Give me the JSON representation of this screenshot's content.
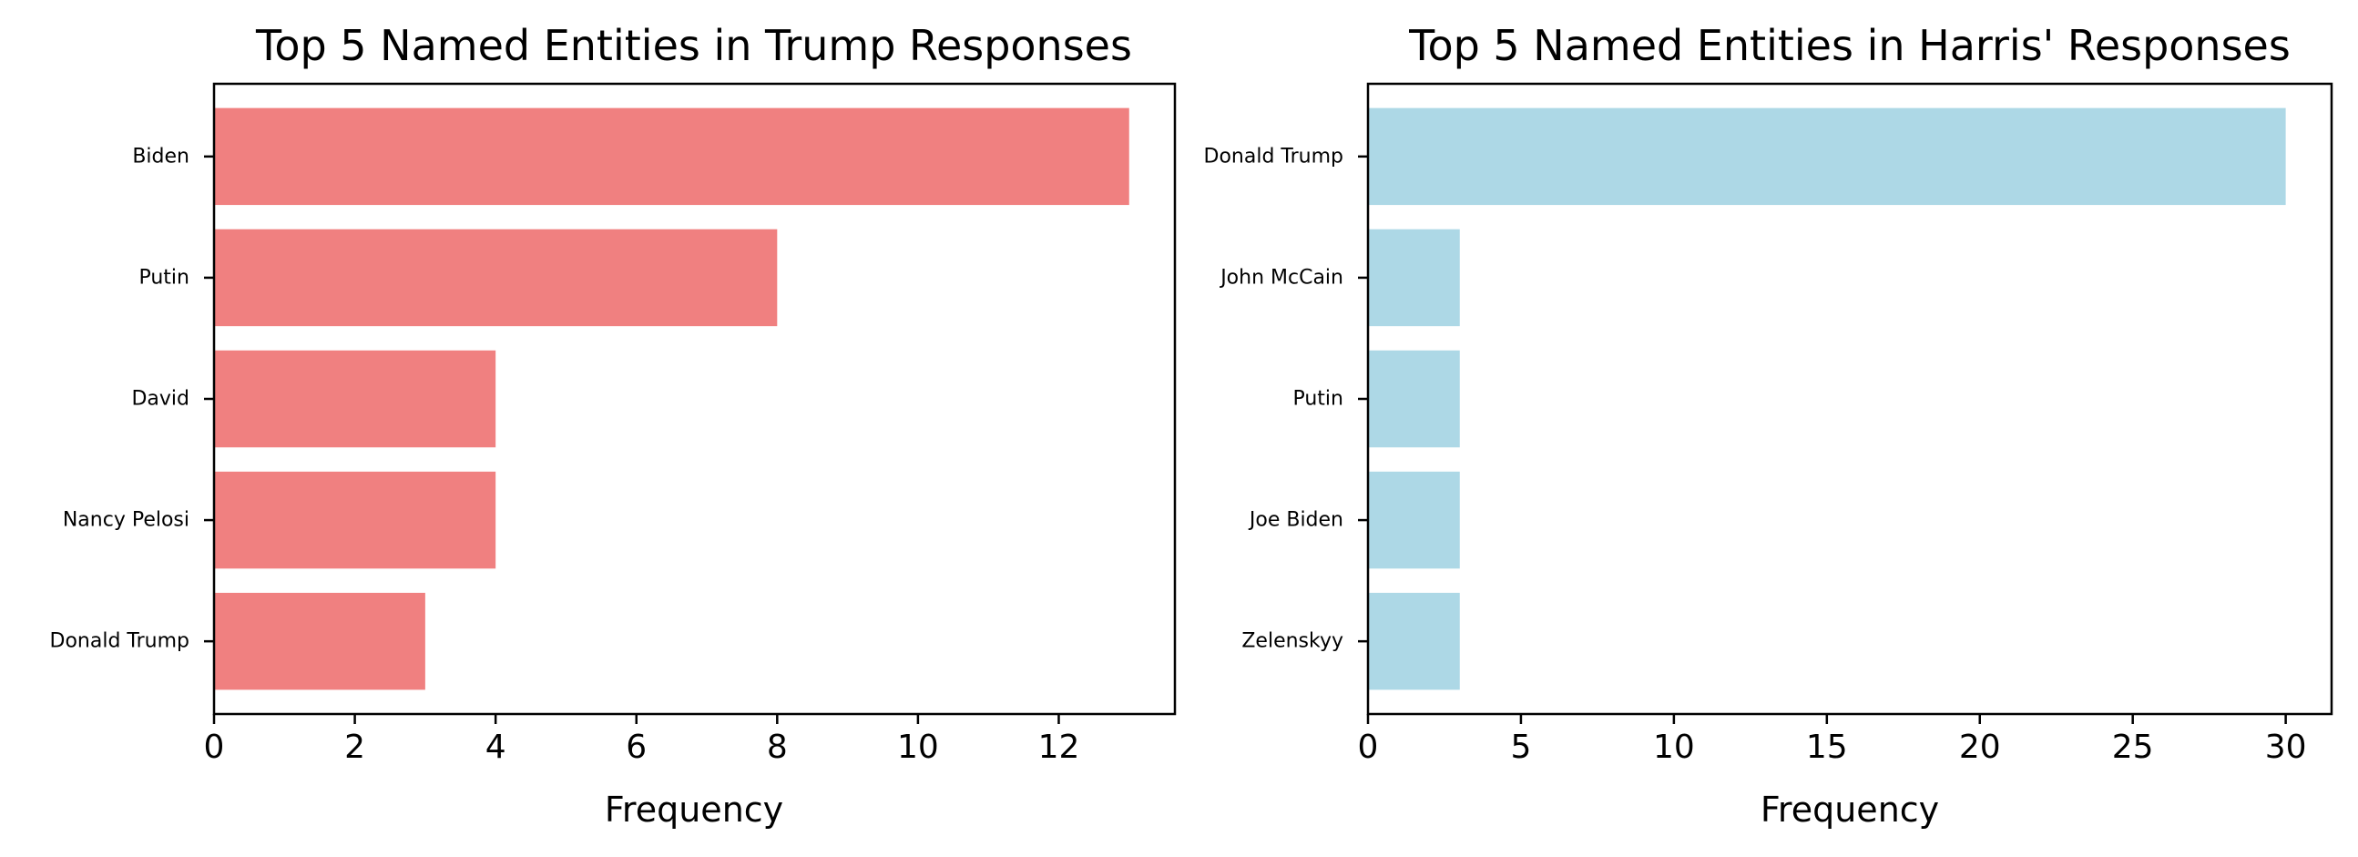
{
  "chart_data": [
    {
      "type": "bar",
      "orientation": "horizontal",
      "title": "Top 5 Named Entities in Trump Responses",
      "xlabel": "Frequency",
      "ylabel": "",
      "categories": [
        "Biden",
        "Putin",
        "David",
        "Nancy Pelosi",
        "Donald Trump"
      ],
      "values": [
        13,
        8,
        4,
        4,
        3
      ],
      "xticks": [
        0,
        2,
        4,
        6,
        8,
        10,
        12
      ],
      "xlim": [
        0,
        13.65
      ],
      "bar_color": "#f08080",
      "grid": false
    },
    {
      "type": "bar",
      "orientation": "horizontal",
      "title": "Top 5 Named Entities in Harris' Responses",
      "xlabel": "Frequency",
      "ylabel": "",
      "categories": [
        "Donald Trump",
        "John McCain",
        "Putin",
        "Joe Biden",
        "Zelenskyy"
      ],
      "values": [
        30,
        3,
        3,
        3,
        3
      ],
      "xticks": [
        0,
        5,
        10,
        15,
        20,
        25,
        30
      ],
      "xlim": [
        0,
        31.5
      ],
      "bar_color": "#add8e6",
      "grid": false
    }
  ]
}
